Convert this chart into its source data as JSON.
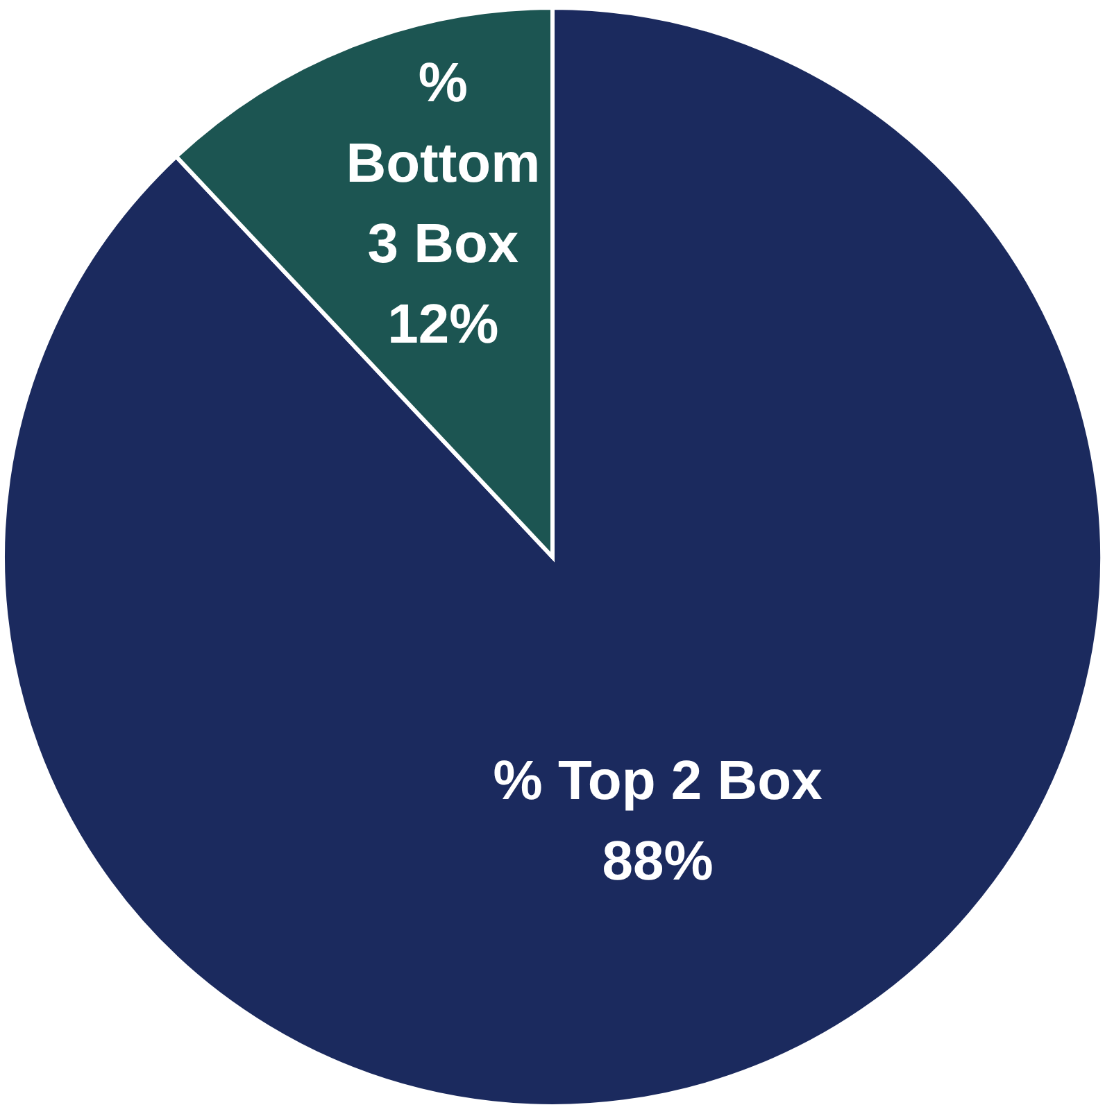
{
  "chart_data": {
    "type": "pie",
    "categories": [
      "% Top 2 Box",
      "% Bottom 3 Box"
    ],
    "values": [
      88,
      12
    ],
    "colors": [
      "#1b2a5e",
      "#1c5552"
    ],
    "value_labels": [
      "88%",
      "12%"
    ]
  }
}
